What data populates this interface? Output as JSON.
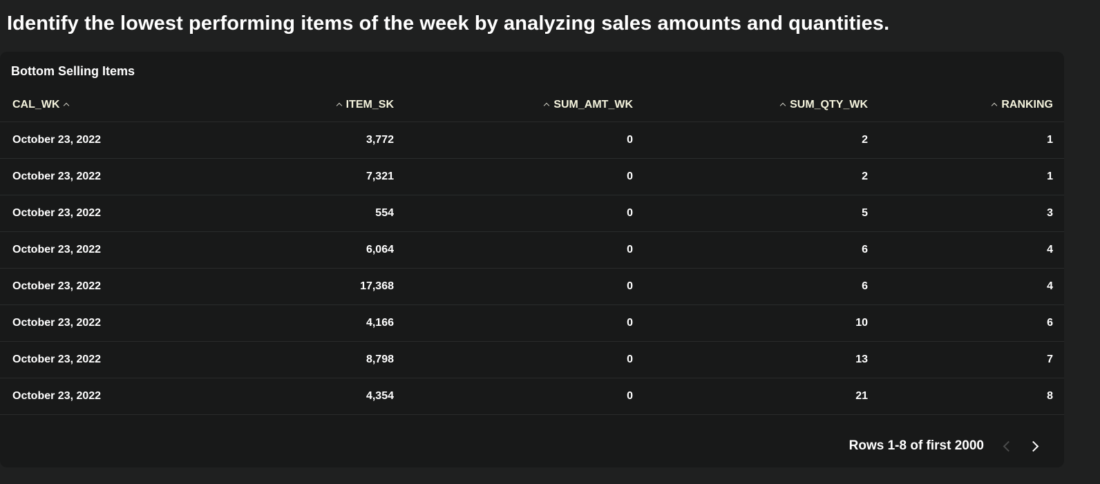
{
  "page": {
    "title": "Identify the lowest performing items of the week by analyzing sales amounts and quantities."
  },
  "card": {
    "title": "Bottom Selling Items"
  },
  "table": {
    "columns": [
      "CAL_WK",
      "ITEM_SK",
      "SUM_AMT_WK",
      "SUM_QTY_WK",
      "RANKING"
    ],
    "rows": [
      [
        "October 23, 2022",
        "3,772",
        "0",
        "2",
        "1"
      ],
      [
        "October 23, 2022",
        "7,321",
        "0",
        "2",
        "1"
      ],
      [
        "October 23, 2022",
        "554",
        "0",
        "5",
        "3"
      ],
      [
        "October 23, 2022",
        "6,064",
        "0",
        "6",
        "4"
      ],
      [
        "October 23, 2022",
        "17,368",
        "0",
        "6",
        "4"
      ],
      [
        "October 23, 2022",
        "4,166",
        "0",
        "10",
        "6"
      ],
      [
        "October 23, 2022",
        "8,798",
        "0",
        "13",
        "7"
      ],
      [
        "October 23, 2022",
        "4,354",
        "0",
        "21",
        "8"
      ]
    ]
  },
  "pagination": {
    "rows_info": "Rows 1-8 of first 2000",
    "prev_icon": "chevron-left-icon",
    "next_icon": "chevron-right-icon"
  },
  "colors": {
    "background": "#1f2020",
    "card": "#181919",
    "header_text": "#f4f3dd",
    "divider": "#2a2c2c"
  }
}
